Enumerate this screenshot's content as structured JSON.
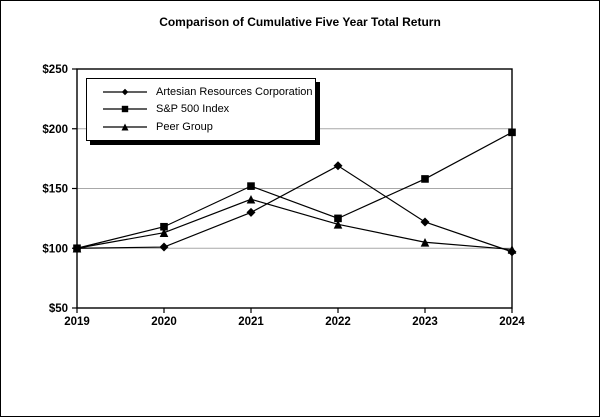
{
  "window": {
    "title": "Comparison of Cumulative Five Year Total Return"
  },
  "legend": {
    "items": [
      {
        "label": "Artesian Resources Corporation",
        "marker": "diamond"
      },
      {
        "label": "S&P 500 Index",
        "marker": "square"
      },
      {
        "label": "Peer Group",
        "marker": "triangle"
      }
    ]
  },
  "chart_data": {
    "type": "line",
    "title": "Comparison of Cumulative Five Year Total Return",
    "categories": [
      "2019",
      "2020",
      "2021",
      "2022",
      "2023",
      "2024"
    ],
    "series": [
      {
        "name": "Artesian Resources Corporation",
        "marker": "diamond",
        "values": [
          100,
          101,
          130,
          169,
          122,
          97
        ]
      },
      {
        "name": "S&P 500 Index",
        "marker": "square",
        "values": [
          100,
          118,
          152,
          125,
          158,
          197
        ]
      },
      {
        "name": "Peer Group",
        "marker": "triangle",
        "values": [
          100,
          113,
          141,
          120,
          105,
          99
        ]
      }
    ],
    "ylim": [
      50,
      250
    ],
    "yticks": [
      {
        "value": 50,
        "label": "$50"
      },
      {
        "value": 100,
        "label": "$100"
      },
      {
        "value": 150,
        "label": "$150"
      },
      {
        "value": 200,
        "label": "$200"
      },
      {
        "value": 250,
        "label": "$250"
      }
    ],
    "grid": "horizontal-inner",
    "legend_position": "top-left-inside",
    "colors": {
      "line": "#000000",
      "gridline": "#a8a8a8",
      "frame": "#000000",
      "background": "#ffffff"
    }
  }
}
